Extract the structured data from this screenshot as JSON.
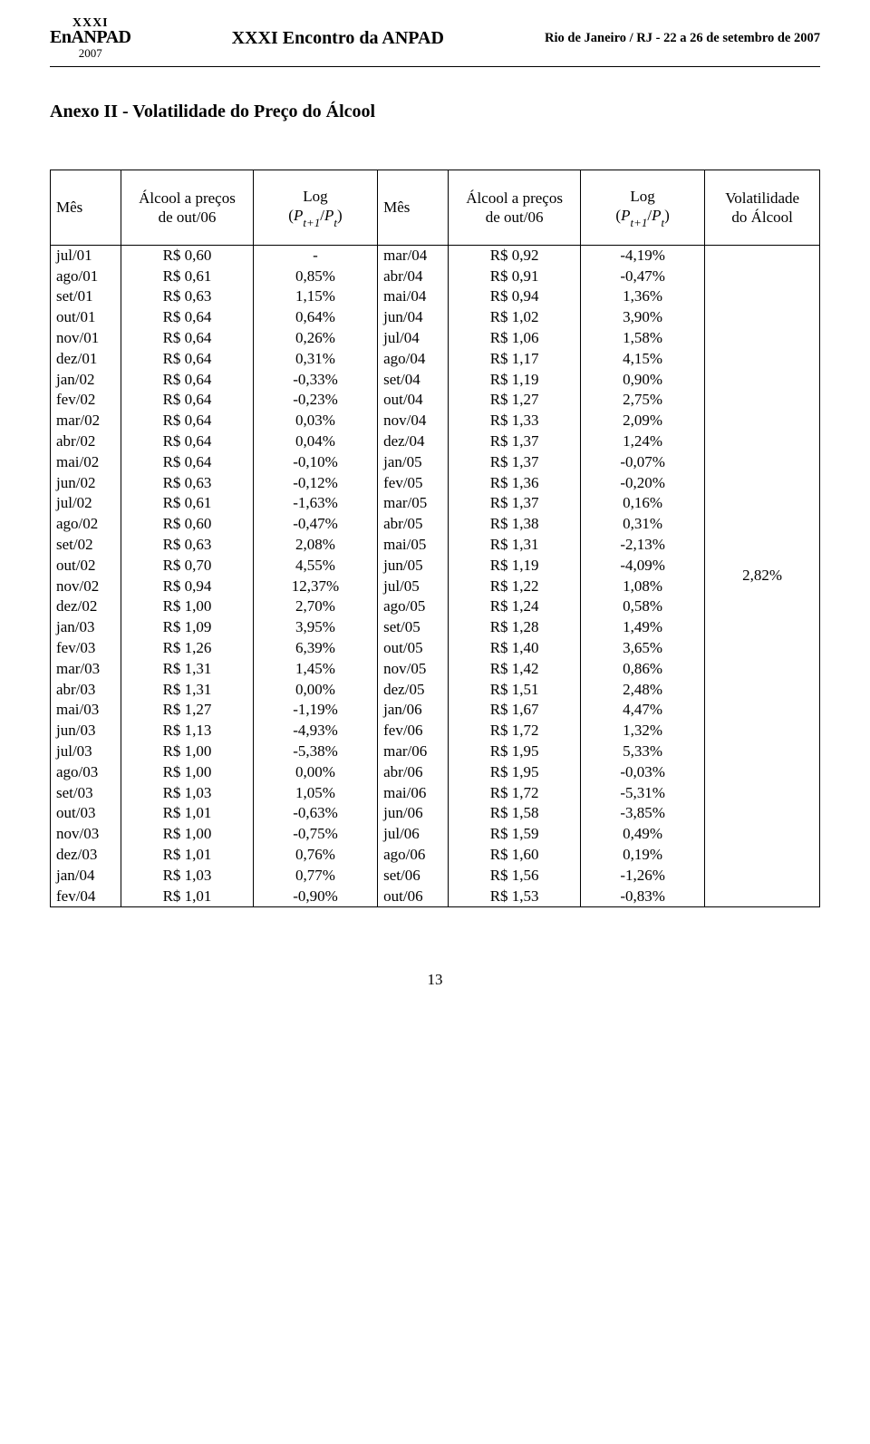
{
  "header": {
    "logo_xxxi": "XXXI",
    "logo_name": "EnANPAD",
    "logo_year": "2007",
    "center": "XXXI Encontro da ANPAD",
    "right": "Rio de Janeiro / RJ - 22 a 26 de setembro de 2007"
  },
  "section_title": "Anexo II - Volatilidade do Preço do Álcool",
  "columns": {
    "mes": "Mês",
    "preco_label_l1": "Álcool a preços",
    "preco_label_l2": "de out/06",
    "log_label": "Log",
    "log_formula_prefix": "(",
    "log_formula_p": "P",
    "log_formula_sub1": "t+1",
    "log_formula_slash": "/",
    "log_formula_sub2": "t",
    "log_formula_suffix": ")",
    "vol_l1": "Volatilidade",
    "vol_l2": "do Álcool"
  },
  "volatility": "2,82%",
  "rows": [
    {
      "m1": "jul/01",
      "p1": "R$ 0,60",
      "l1": "-",
      "m2": "mar/04",
      "p2": "R$ 0,92",
      "l2": "-4,19%"
    },
    {
      "m1": "ago/01",
      "p1": "R$ 0,61",
      "l1": "0,85%",
      "m2": "abr/04",
      "p2": "R$ 0,91",
      "l2": "-0,47%"
    },
    {
      "m1": "set/01",
      "p1": "R$ 0,63",
      "l1": "1,15%",
      "m2": "mai/04",
      "p2": "R$ 0,94",
      "l2": "1,36%"
    },
    {
      "m1": "out/01",
      "p1": "R$ 0,64",
      "l1": "0,64%",
      "m2": "jun/04",
      "p2": "R$ 1,02",
      "l2": "3,90%"
    },
    {
      "m1": "nov/01",
      "p1": "R$ 0,64",
      "l1": "0,26%",
      "m2": "jul/04",
      "p2": "R$ 1,06",
      "l2": "1,58%"
    },
    {
      "m1": "dez/01",
      "p1": "R$ 0,64",
      "l1": "0,31%",
      "m2": "ago/04",
      "p2": "R$ 1,17",
      "l2": "4,15%"
    },
    {
      "m1": "jan/02",
      "p1": "R$ 0,64",
      "l1": "-0,33%",
      "m2": "set/04",
      "p2": "R$ 1,19",
      "l2": "0,90%"
    },
    {
      "m1": "fev/02",
      "p1": "R$ 0,64",
      "l1": "-0,23%",
      "m2": "out/04",
      "p2": "R$ 1,27",
      "l2": "2,75%"
    },
    {
      "m1": "mar/02",
      "p1": "R$ 0,64",
      "l1": "0,03%",
      "m2": "nov/04",
      "p2": "R$ 1,33",
      "l2": "2,09%"
    },
    {
      "m1": "abr/02",
      "p1": "R$ 0,64",
      "l1": "0,04%",
      "m2": "dez/04",
      "p2": "R$ 1,37",
      "l2": "1,24%"
    },
    {
      "m1": "mai/02",
      "p1": "R$ 0,64",
      "l1": "-0,10%",
      "m2": "jan/05",
      "p2": "R$ 1,37",
      "l2": "-0,07%"
    },
    {
      "m1": "jun/02",
      "p1": "R$ 0,63",
      "l1": "-0,12%",
      "m2": "fev/05",
      "p2": "R$ 1,36",
      "l2": "-0,20%"
    },
    {
      "m1": "jul/02",
      "p1": "R$ 0,61",
      "l1": "-1,63%",
      "m2": "mar/05",
      "p2": "R$ 1,37",
      "l2": "0,16%"
    },
    {
      "m1": "ago/02",
      "p1": "R$ 0,60",
      "l1": "-0,47%",
      "m2": "abr/05",
      "p2": "R$ 1,38",
      "l2": "0,31%"
    },
    {
      "m1": "set/02",
      "p1": "R$ 0,63",
      "l1": "2,08%",
      "m2": "mai/05",
      "p2": "R$ 1,31",
      "l2": "-2,13%"
    },
    {
      "m1": "out/02",
      "p1": "R$ 0,70",
      "l1": "4,55%",
      "m2": "jun/05",
      "p2": "R$ 1,19",
      "l2": "-4,09%"
    },
    {
      "m1": "nov/02",
      "p1": "R$ 0,94",
      "l1": "12,37%",
      "m2": "jul/05",
      "p2": "R$ 1,22",
      "l2": "1,08%"
    },
    {
      "m1": "dez/02",
      "p1": "R$ 1,00",
      "l1": "2,70%",
      "m2": "ago/05",
      "p2": "R$ 1,24",
      "l2": "0,58%"
    },
    {
      "m1": "jan/03",
      "p1": "R$ 1,09",
      "l1": "3,95%",
      "m2": "set/05",
      "p2": "R$ 1,28",
      "l2": "1,49%"
    },
    {
      "m1": "fev/03",
      "p1": "R$ 1,26",
      "l1": "6,39%",
      "m2": "out/05",
      "p2": "R$ 1,40",
      "l2": "3,65%"
    },
    {
      "m1": "mar/03",
      "p1": "R$ 1,31",
      "l1": "1,45%",
      "m2": "nov/05",
      "p2": "R$ 1,42",
      "l2": "0,86%"
    },
    {
      "m1": "abr/03",
      "p1": "R$ 1,31",
      "l1": "0,00%",
      "m2": "dez/05",
      "p2": "R$ 1,51",
      "l2": "2,48%"
    },
    {
      "m1": "mai/03",
      "p1": "R$ 1,27",
      "l1": "-1,19%",
      "m2": "jan/06",
      "p2": "R$ 1,67",
      "l2": "4,47%"
    },
    {
      "m1": "jun/03",
      "p1": "R$ 1,13",
      "l1": "-4,93%",
      "m2": "fev/06",
      "p2": "R$ 1,72",
      "l2": "1,32%"
    },
    {
      "m1": "jul/03",
      "p1": "R$ 1,00",
      "l1": "-5,38%",
      "m2": "mar/06",
      "p2": "R$ 1,95",
      "l2": "5,33%"
    },
    {
      "m1": "ago/03",
      "p1": "R$ 1,00",
      "l1": "0,00%",
      "m2": "abr/06",
      "p2": "R$ 1,95",
      "l2": "-0,03%"
    },
    {
      "m1": "set/03",
      "p1": "R$ 1,03",
      "l1": "1,05%",
      "m2": "mai/06",
      "p2": "R$ 1,72",
      "l2": "-5,31%"
    },
    {
      "m1": "out/03",
      "p1": "R$ 1,01",
      "l1": "-0,63%",
      "m2": "jun/06",
      "p2": "R$ 1,58",
      "l2": "-3,85%"
    },
    {
      "m1": "nov/03",
      "p1": "R$ 1,00",
      "l1": "-0,75%",
      "m2": "jul/06",
      "p2": "R$ 1,59",
      "l2": "0,49%"
    },
    {
      "m1": "dez/03",
      "p1": "R$ 1,01",
      "l1": "0,76%",
      "m2": "ago/06",
      "p2": "R$ 1,60",
      "l2": "0,19%"
    },
    {
      "m1": "jan/04",
      "p1": "R$ 1,03",
      "l1": "0,77%",
      "m2": "set/06",
      "p2": "R$ 1,56",
      "l2": "-1,26%"
    },
    {
      "m1": "fev/04",
      "p1": "R$ 1,01",
      "l1": "-0,90%",
      "m2": "out/06",
      "p2": "R$ 1,53",
      "l2": "-0,83%"
    }
  ],
  "page_number": "13"
}
